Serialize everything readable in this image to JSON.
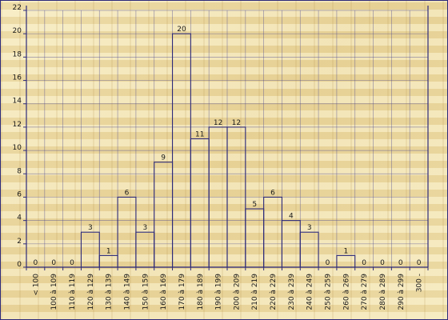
{
  "chart_data": {
    "type": "bar",
    "categories": [
      "< 100",
      "100 à 109",
      "110 à 119",
      "120 à 129",
      "130 à 139",
      "140 à 149",
      "150 à 159",
      "160 à 169",
      "170 à 179",
      "180 à 189",
      "190 à 199",
      "200 à 209",
      "210 à 219",
      "220 à 229",
      "230 à 239",
      "240 à 249",
      "250 à 259",
      "260 à 269",
      "270 à 279",
      "280 à 289",
      "290 à 299",
      "300 -"
    ],
    "values": [
      0,
      0,
      0,
      3,
      1,
      6,
      3,
      9,
      20,
      11,
      12,
      12,
      5,
      6,
      4,
      3,
      0,
      1,
      0,
      0,
      0,
      0
    ],
    "title": "",
    "xlabel": "",
    "ylabel": "",
    "ylim": [
      0,
      22
    ],
    "yticks": [
      0,
      2,
      4,
      6,
      8,
      10,
      12,
      14,
      16,
      18,
      20,
      22
    ],
    "grid": true,
    "bar_outline_color": "#2d2a7a",
    "background_color": "#f0e2ad"
  }
}
